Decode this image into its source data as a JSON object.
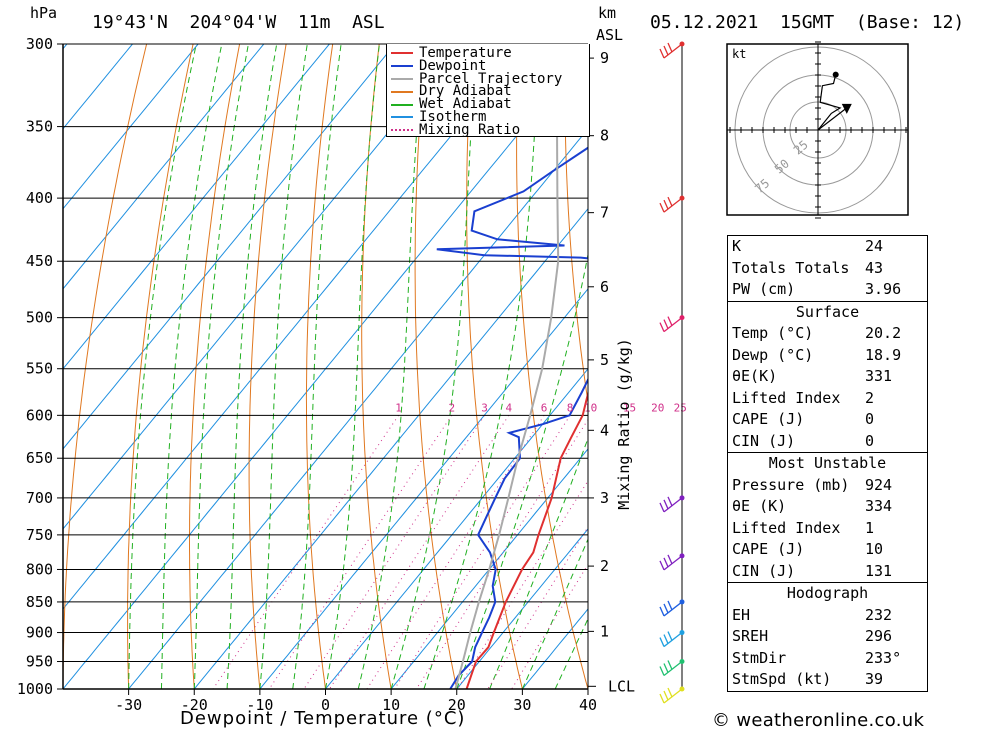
{
  "header": {
    "hpa_label": "hPa",
    "location": "19°43'N  204°04'W  11m  ASL",
    "km_label": "km",
    "asl_label": "ASL",
    "datetime": "05.12.2021  15GMT  (Base: 12)"
  },
  "chart_data": {
    "type": "line",
    "title": "",
    "xlabel": "Dewpoint / Temperature (°C)",
    "ylabel": "hPa",
    "pressure_ticks": [
      300,
      350,
      400,
      450,
      500,
      550,
      600,
      650,
      700,
      750,
      800,
      850,
      900,
      950,
      1000
    ],
    "pressure_tick_labels": [
      "300",
      "350",
      "400",
      "450",
      "500",
      "550",
      "600",
      "650",
      "700",
      "750",
      "800",
      "850",
      "900",
      "950",
      "1000"
    ],
    "temp_ticks": [
      -30,
      -20,
      -10,
      0,
      10,
      20,
      30,
      40
    ],
    "temp_tick_labels": [
      "-30",
      "-20",
      "-10",
      "0",
      "10",
      "20",
      "30",
      "40"
    ],
    "xlim": [
      -40,
      40
    ],
    "ylim": [
      1000,
      300
    ],
    "skew": 1.0,
    "km_ticks": [
      {
        "km": 1,
        "p": 898
      },
      {
        "km": 2,
        "p": 795
      },
      {
        "km": 3,
        "p": 700
      },
      {
        "km": 4,
        "p": 617
      },
      {
        "km": 5,
        "p": 541
      },
      {
        "km": 6,
        "p": 472
      },
      {
        "km": 7,
        "p": 411
      },
      {
        "km": 8,
        "p": 356
      },
      {
        "km": 9,
        "p": 308
      }
    ],
    "lcl_label": "LCL",
    "lcl_pressure": 995,
    "mixing_ratio_axis_label": "Mixing Ratio (g/kg)",
    "mixing_ratio_labels": [
      "1",
      "2",
      "3",
      "4",
      "6",
      "8",
      "10",
      "15",
      "20",
      "25"
    ],
    "mixing_ratio_values": [
      1,
      2,
      3,
      4,
      6,
      8,
      10,
      15,
      20,
      25
    ],
    "legend": {
      "placement": "top-right",
      "entries": [
        {
          "name": "Temperature",
          "color": "#e03030",
          "dotted": false
        },
        {
          "name": "Dewpoint",
          "color": "#1a3fd0",
          "dotted": false
        },
        {
          "name": "Parcel Trajectory",
          "color": "#aaaaaa",
          "dotted": false
        },
        {
          "name": "Dry Adiabat",
          "color": "#e07820",
          "dotted": false
        },
        {
          "name": "Wet Adiabat",
          "color": "#20b020",
          "dotted": false
        },
        {
          "name": "Isotherm",
          "color": "#2090e0",
          "dotted": false
        },
        {
          "name": "Mixing Ratio",
          "color": "#d0308a",
          "dotted": true
        }
      ]
    },
    "series": [
      {
        "name": "Temperature",
        "color": "#e03030",
        "points": [
          [
            1000,
            21.5
          ],
          [
            975,
            20.5
          ],
          [
            950,
            19.5
          ],
          [
            925,
            19.6
          ],
          [
            900,
            18.6
          ],
          [
            850,
            16.6
          ],
          [
            800,
            15.0
          ],
          [
            775,
            14.6
          ],
          [
            750,
            13.2
          ],
          [
            700,
            10.6
          ],
          [
            650,
            7.0
          ],
          [
            625,
            6.0
          ],
          [
            600,
            5.0
          ],
          [
            575,
            3.0
          ],
          [
            550,
            0.8
          ],
          [
            525,
            -1.0
          ],
          [
            500,
            -3.0
          ],
          [
            475,
            -6.0
          ],
          [
            450,
            -9.0
          ],
          [
            425,
            -12.0
          ],
          [
            400,
            -14.0
          ],
          [
            375,
            -17.5
          ],
          [
            350,
            -22.0
          ],
          [
            325,
            -26.5
          ],
          [
            300,
            -33.0
          ]
        ]
      },
      {
        "name": "Dewpoint",
        "color": "#1a3fd0",
        "points": [
          [
            1000,
            19.0
          ],
          [
            975,
            18.6
          ],
          [
            950,
            18.9
          ],
          [
            925,
            17.6
          ],
          [
            900,
            16.8
          ],
          [
            875,
            16.0
          ],
          [
            850,
            15.0
          ],
          [
            825,
            12.6
          ],
          [
            800,
            11.0
          ],
          [
            775,
            8.0
          ],
          [
            750,
            4.0
          ],
          [
            725,
            3.0
          ],
          [
            700,
            2.0
          ],
          [
            675,
            1.0
          ],
          [
            650,
            0.8
          ],
          [
            625,
            -2.0
          ],
          [
            620,
            -4.0
          ],
          [
            610,
            0.0
          ],
          [
            600,
            3.0
          ],
          [
            575,
            2.0
          ],
          [
            550,
            0.8
          ],
          [
            525,
            -1.5
          ],
          [
            500,
            -4.0
          ],
          [
            475,
            -6.5
          ],
          [
            450,
            -9.5
          ],
          [
            447,
            -15.0
          ],
          [
            445,
            -30.0
          ],
          [
            440,
            -38.0
          ],
          [
            437,
            -19.0
          ],
          [
            432,
            -30.0
          ],
          [
            425,
            -35.0
          ],
          [
            410,
            -37.0
          ],
          [
            395,
            -32.0
          ],
          [
            380,
            -30.0
          ],
          [
            360,
            -27.0
          ],
          [
            350,
            -30.0
          ],
          [
            340,
            -31.0
          ],
          [
            330,
            -35.0
          ],
          [
            320,
            -42.0
          ],
          [
            310,
            -38.0
          ],
          [
            300,
            -38.0
          ]
        ]
      },
      {
        "name": "Parcel Trajectory",
        "color": "#aaaaaa",
        "points": [
          [
            1000,
            19.8
          ],
          [
            950,
            17.5
          ],
          [
            900,
            15.0
          ],
          [
            850,
            12.5
          ],
          [
            800,
            10.0
          ],
          [
            750,
            7.2
          ],
          [
            700,
            4.0
          ],
          [
            650,
            0.5
          ],
          [
            600,
            -3.0
          ],
          [
            550,
            -7.0
          ],
          [
            500,
            -12.0
          ],
          [
            450,
            -18.0
          ],
          [
            400,
            -26.0
          ],
          [
            350,
            -35.0
          ],
          [
            300,
            -46.0
          ]
        ]
      }
    ],
    "wind_barbs": [
      {
        "p": 300,
        "color": "#e03030"
      },
      {
        "p": 400,
        "color": "#e03030"
      },
      {
        "p": 500,
        "color": "#e0206a"
      },
      {
        "p": 700,
        "color": "#8020c0"
      },
      {
        "p": 780,
        "color": "#8020c0"
      },
      {
        "p": 850,
        "color": "#2060e0"
      },
      {
        "p": 900,
        "color": "#20a0e0"
      },
      {
        "p": 950,
        "color": "#20c070"
      },
      {
        "p": 1000,
        "color": "#e0e020"
      }
    ],
    "hodograph": {
      "unit_label": "kt",
      "ring_labels": [
        "25",
        "50",
        "75"
      ],
      "points": [
        [
          0,
          0
        ],
        [
          12,
          15
        ],
        [
          20,
          20
        ],
        [
          2,
          25
        ],
        [
          4,
          40
        ],
        [
          14,
          42
        ],
        [
          16,
          50
        ]
      ],
      "storm_motion": [
        13,
        20
      ]
    }
  },
  "indices": {
    "rows": [
      {
        "label": "K",
        "value": "24"
      },
      {
        "label": "Totals Totals",
        "value": "43"
      },
      {
        "label": "PW (cm)",
        "value": "3.96"
      }
    ]
  },
  "surface": {
    "title": "Surface",
    "rows": [
      {
        "label": "Temp (°C)",
        "value": "20.2"
      },
      {
        "label": "Dewp (°C)",
        "value": "18.9"
      },
      {
        "label": "θE(K)",
        "value": "331"
      },
      {
        "label": "Lifted Index",
        "value": "2"
      },
      {
        "label": "CAPE (J)",
        "value": "0"
      },
      {
        "label": "CIN (J)",
        "value": "0"
      }
    ]
  },
  "most_unstable": {
    "title": "Most Unstable",
    "rows": [
      {
        "label": "Pressure (mb)",
        "value": "924"
      },
      {
        "label": "θE (K)",
        "value": "334"
      },
      {
        "label": "Lifted Index",
        "value": "1"
      },
      {
        "label": "CAPE (J)",
        "value": "10"
      },
      {
        "label": "CIN (J)",
        "value": "131"
      }
    ]
  },
  "hodograph_table": {
    "title": "Hodograph",
    "rows": [
      {
        "label": "EH",
        "value": "232"
      },
      {
        "label": "SREH",
        "value": "296"
      },
      {
        "label": "StmDir",
        "value": "233°"
      },
      {
        "label": "StmSpd (kt)",
        "value": "39"
      }
    ]
  },
  "footer": {
    "copyright": "© weatheronline.co.uk"
  }
}
